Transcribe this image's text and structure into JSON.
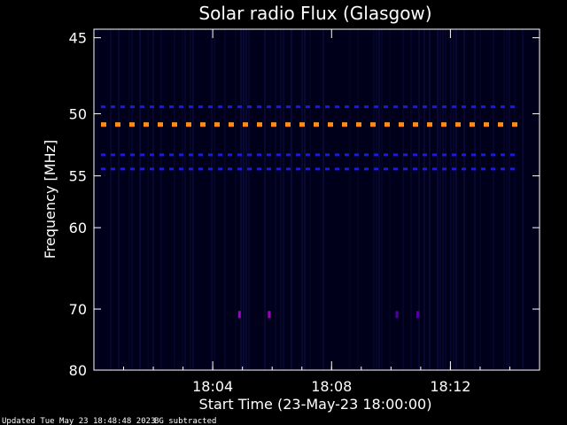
{
  "chart_data": {
    "type": "heatmap",
    "title": "Solar radio Flux (Glasgow)",
    "xlabel": "Start Time (23-May-23 18:00:00)",
    "ylabel": "Frequency [MHz]",
    "x_ticks": [
      {
        "label": "18:04",
        "minutes": 4
      },
      {
        "label": "18:08",
        "minutes": 8
      },
      {
        "label": "18:12",
        "minutes": 12
      }
    ],
    "xlim_minutes": [
      0,
      15
    ],
    "y_ticks": [
      {
        "label": "45",
        "mhz": 45
      },
      {
        "label": "50",
        "mhz": 50
      },
      {
        "label": "55",
        "mhz": 55
      },
      {
        "label": "60",
        "mhz": 60
      },
      {
        "label": "70",
        "mhz": 70
      },
      {
        "label": "80",
        "mhz": 80
      }
    ],
    "ylim_mhz": [
      44.5,
      80
    ],
    "y_scale": "reciprocal",
    "background_color": "#00001a",
    "bands": [
      {
        "mhz": 49.5,
        "color": "#1a1ae6",
        "style": "dashed"
      },
      {
        "mhz": 50.8,
        "color": "#ff8c1a",
        "style": "dashed-thick"
      },
      {
        "mhz": 53.2,
        "color": "#1a1ae6",
        "style": "dashed"
      },
      {
        "mhz": 54.4,
        "color": "#1a1ae6",
        "style": "dashed"
      }
    ],
    "spots": [
      {
        "minutes": 4.9,
        "mhz": 70.8,
        "color": "#a000c0"
      },
      {
        "minutes": 5.9,
        "mhz": 70.8,
        "color": "#a000c0"
      },
      {
        "minutes": 10.2,
        "mhz": 70.8,
        "color": "#5000a0"
      },
      {
        "minutes": 10.9,
        "mhz": 70.8,
        "color": "#5000a0"
      }
    ]
  },
  "footer": {
    "updated": "Updated Tue May 23 18:48:48 2023",
    "note": "BG subtracted"
  }
}
